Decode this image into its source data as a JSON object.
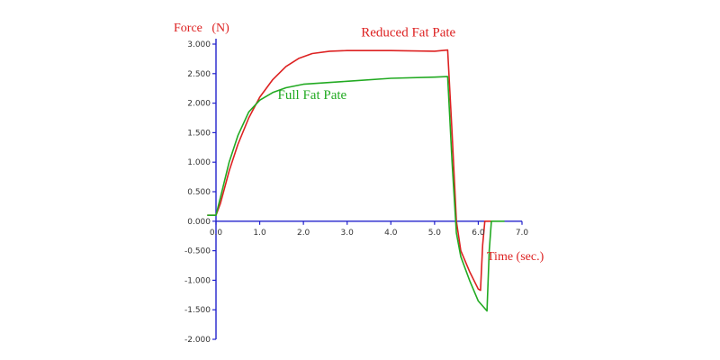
{
  "chart_data": {
    "type": "line",
    "ylabel": "Force   (N)",
    "xlabel": "Time (sec.)",
    "xlim": [
      0.0,
      7.0
    ],
    "ylim": [
      -2.0,
      3.0
    ],
    "x_ticks": [
      0.0,
      1.0,
      2.0,
      3.0,
      4.0,
      5.0,
      6.0,
      7.0
    ],
    "x_tick_labels": [
      "0.0",
      "1.0",
      "2.0",
      "3.0",
      "4.0",
      "5.0",
      "6.0",
      "7.0"
    ],
    "y_ticks": [
      3.0,
      2.5,
      2.0,
      1.5,
      1.0,
      0.5,
      0.0,
      -0.5,
      -1.0,
      -1.5,
      -2.0
    ],
    "y_tick_labels": [
      "3.000",
      "2.500",
      "2.000",
      "1.500",
      "1.000",
      "0.500",
      "0.000",
      "-0.500",
      "-1.000",
      "-1.500",
      "-2.000"
    ],
    "grid": false,
    "axis_color": "#2222cc",
    "series": [
      {
        "name": "Reduced Fat Pate",
        "color": "#dd2222",
        "points": [
          [
            -0.2,
            0.1
          ],
          [
            0.0,
            0.1
          ],
          [
            0.1,
            0.3
          ],
          [
            0.3,
            0.85
          ],
          [
            0.5,
            1.3
          ],
          [
            0.75,
            1.75
          ],
          [
            1.0,
            2.1
          ],
          [
            1.3,
            2.4
          ],
          [
            1.6,
            2.62
          ],
          [
            1.9,
            2.76
          ],
          [
            2.2,
            2.84
          ],
          [
            2.6,
            2.88
          ],
          [
            3.0,
            2.89
          ],
          [
            4.0,
            2.89
          ],
          [
            5.0,
            2.88
          ],
          [
            5.3,
            2.9
          ],
          [
            5.4,
            1.5
          ],
          [
            5.5,
            0.0
          ],
          [
            5.6,
            -0.5
          ],
          [
            5.8,
            -0.85
          ],
          [
            6.0,
            -1.15
          ],
          [
            6.05,
            -1.17
          ],
          [
            6.1,
            -0.4
          ],
          [
            6.15,
            0.0
          ],
          [
            6.3,
            0.0
          ]
        ]
      },
      {
        "name": "Full Fat Pate",
        "color": "#22aa22",
        "points": [
          [
            -0.2,
            0.1
          ],
          [
            0.0,
            0.1
          ],
          [
            0.1,
            0.4
          ],
          [
            0.3,
            1.0
          ],
          [
            0.5,
            1.45
          ],
          [
            0.75,
            1.85
          ],
          [
            1.0,
            2.05
          ],
          [
            1.3,
            2.18
          ],
          [
            1.6,
            2.26
          ],
          [
            2.0,
            2.32
          ],
          [
            3.0,
            2.37
          ],
          [
            4.0,
            2.42
          ],
          [
            5.0,
            2.44
          ],
          [
            5.3,
            2.45
          ],
          [
            5.4,
            1.0
          ],
          [
            5.5,
            -0.2
          ],
          [
            5.6,
            -0.6
          ],
          [
            5.8,
            -1.0
          ],
          [
            6.0,
            -1.35
          ],
          [
            6.2,
            -1.52
          ],
          [
            6.25,
            -0.5
          ],
          [
            6.3,
            0.0
          ],
          [
            6.5,
            0.0
          ],
          [
            6.6,
            0.0
          ]
        ]
      }
    ],
    "series_label_anchor": {
      "Reduced Fat Pate": [
        4.4,
        3.13
      ],
      "Full Fat Pate": [
        2.2,
        2.07
      ]
    }
  }
}
